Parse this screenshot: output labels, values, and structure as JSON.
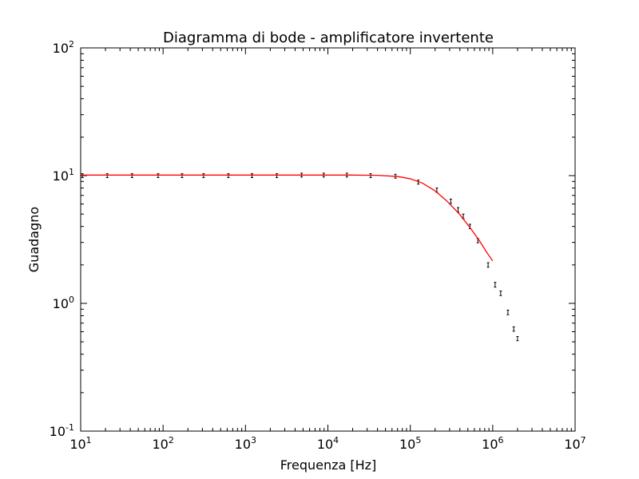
{
  "chart_data": {
    "type": "scatter",
    "title": "Diagramma di bode - amplificatore invertente",
    "xlabel": "Frequenza [Hz]",
    "ylabel": "Guadagno",
    "xscale": "log",
    "yscale": "log",
    "xlim": [
      10,
      10000000
    ],
    "ylim": [
      0.1,
      100
    ],
    "grid": false,
    "legend": "none",
    "x_ticks": [
      {
        "base": "10",
        "exp": "1",
        "value": 10
      },
      {
        "base": "10",
        "exp": "2",
        "value": 100
      },
      {
        "base": "10",
        "exp": "3",
        "value": 1000
      },
      {
        "base": "10",
        "exp": "4",
        "value": 10000
      },
      {
        "base": "10",
        "exp": "5",
        "value": 100000
      },
      {
        "base": "10",
        "exp": "6",
        "value": 1000000
      },
      {
        "base": "10",
        "exp": "7",
        "value": 10000000
      }
    ],
    "y_ticks": [
      {
        "base": "10",
        "exp": "-1",
        "value": 0.1
      },
      {
        "base": "10",
        "exp": "0",
        "value": 1
      },
      {
        "base": "10",
        "exp": "1",
        "value": 10
      },
      {
        "base": "10",
        "exp": "2",
        "value": 100
      }
    ],
    "series": [
      {
        "kind": "errorbar",
        "color": "#000000",
        "points": [
          {
            "x": 10.5,
            "y": 10.0,
            "err": 0.35
          },
          {
            "x": 21,
            "y": 10.0,
            "err": 0.35
          },
          {
            "x": 42,
            "y": 10.0,
            "err": 0.35
          },
          {
            "x": 87,
            "y": 10.0,
            "err": 0.35
          },
          {
            "x": 170,
            "y": 10.0,
            "err": 0.35
          },
          {
            "x": 310,
            "y": 10.0,
            "err": 0.35
          },
          {
            "x": 620,
            "y": 10.0,
            "err": 0.35
          },
          {
            "x": 1200,
            "y": 10.0,
            "err": 0.35
          },
          {
            "x": 2400,
            "y": 10.0,
            "err": 0.35
          },
          {
            "x": 4800,
            "y": 10.1,
            "err": 0.35
          },
          {
            "x": 8900,
            "y": 10.1,
            "err": 0.35
          },
          {
            "x": 17000,
            "y": 10.1,
            "err": 0.35
          },
          {
            "x": 33000,
            "y": 10.0,
            "err": 0.35
          },
          {
            "x": 66000,
            "y": 9.9,
            "err": 0.35
          },
          {
            "x": 125000,
            "y": 8.9,
            "err": 0.32
          },
          {
            "x": 210000,
            "y": 7.7,
            "err": 0.3
          },
          {
            "x": 310000,
            "y": 6.3,
            "err": 0.25
          },
          {
            "x": 380000,
            "y": 5.4,
            "err": 0.22
          },
          {
            "x": 440000,
            "y": 4.8,
            "err": 0.2
          },
          {
            "x": 530000,
            "y": 4.0,
            "err": 0.16
          },
          {
            "x": 660000,
            "y": 3.1,
            "err": 0.12
          },
          {
            "x": 880000,
            "y": 2.0,
            "err": 0.08
          },
          {
            "x": 1070000,
            "y": 1.4,
            "err": 0.06
          },
          {
            "x": 1250000,
            "y": 1.2,
            "err": 0.05
          },
          {
            "x": 1530000,
            "y": 0.85,
            "err": 0.035
          },
          {
            "x": 1800000,
            "y": 0.63,
            "err": 0.025
          },
          {
            "x": 2000000,
            "y": 0.53,
            "err": 0.02
          }
        ]
      },
      {
        "kind": "line",
        "color": "#ff0000",
        "x": [
          10,
          20,
          50,
          100,
          200,
          500,
          1000,
          2000,
          5000,
          10000,
          20000,
          40000,
          70000,
          100000,
          140000,
          200000,
          280000,
          400000,
          550000,
          700000,
          850000,
          1000000
        ],
        "y": [
          10.1,
          10.1,
          10.1,
          10.1,
          10.1,
          10.1,
          10.1,
          10.1,
          10.1,
          10.1,
          10.1,
          10.05,
          9.85,
          9.45,
          8.75,
          7.6,
          6.3,
          4.95,
          3.8,
          3.05,
          2.5,
          2.15
        ]
      }
    ]
  }
}
